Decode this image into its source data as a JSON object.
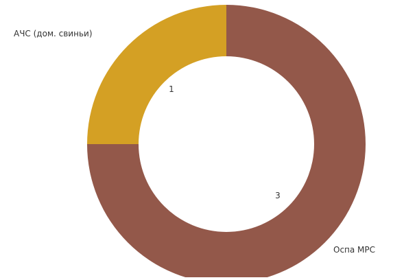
{
  "chart_data": {
    "type": "pie",
    "donut": true,
    "categories": [
      "АЧС (дом. свиньи)",
      "Оспа МРС"
    ],
    "values": [
      1,
      3
    ],
    "colors": [
      "#D4A024",
      "#93584A"
    ],
    "data_labels": [
      "1",
      "3"
    ]
  }
}
